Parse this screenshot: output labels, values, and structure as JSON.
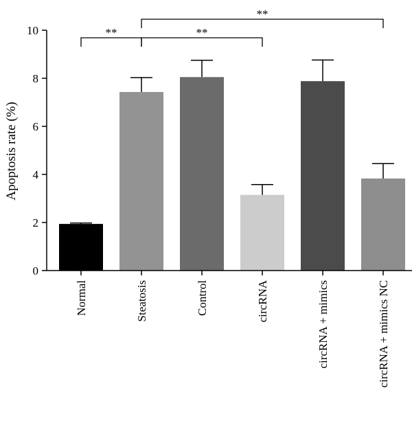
{
  "chart_data": {
    "type": "bar",
    "ylabel": "Apoptosis rate (%)",
    "ylim": [
      0,
      10
    ],
    "yticks": [
      0,
      2,
      4,
      6,
      8,
      10
    ],
    "categories": [
      "Normal",
      "Steatosis",
      "Control",
      "circRNA",
      "circRNA + mimics",
      "circRNA + mimics NC"
    ],
    "values": [
      1.94,
      7.43,
      8.05,
      3.15,
      7.88,
      3.83
    ],
    "errors": [
      0.04,
      0.6,
      0.7,
      0.43,
      0.88,
      0.62
    ],
    "colors": [
      "#000000",
      "#939393",
      "#6b6b6b",
      "#cccccc",
      "#4b4b4b",
      "#8e8e8e"
    ],
    "significance": [
      {
        "from": 0,
        "to": 1,
        "label": "**",
        "y": 9.7
      },
      {
        "from": 1,
        "to": 3,
        "label": "**",
        "y": 9.7
      },
      {
        "from": 1,
        "to": 5,
        "label": "**",
        "y": 10.45
      }
    ]
  }
}
